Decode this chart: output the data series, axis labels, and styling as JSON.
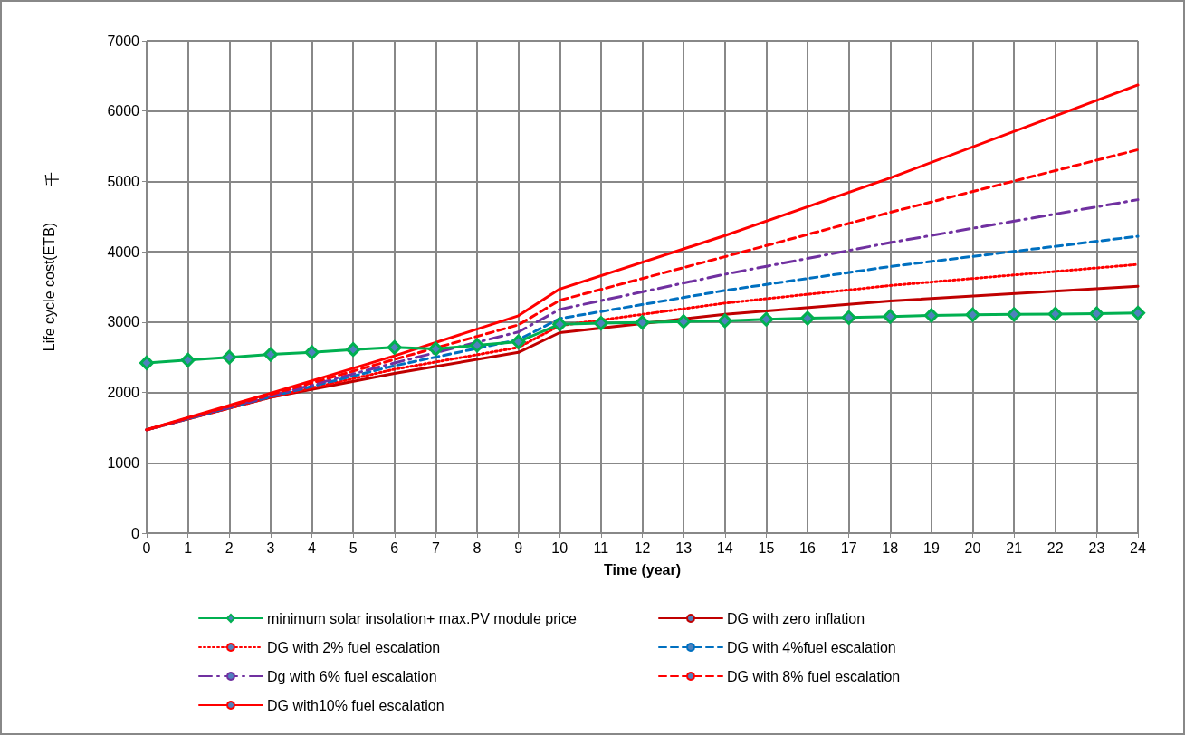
{
  "chart_data": {
    "type": "line",
    "xlabel": "Time (year)",
    "ylabel": "Life cycle cost(ETB)",
    "annotations": [
      "千"
    ],
    "xlim": [
      0,
      24
    ],
    "xticks": [
      0,
      1,
      2,
      3,
      4,
      5,
      6,
      7,
      8,
      9,
      10,
      11,
      12,
      13,
      14,
      15,
      16,
      17,
      18,
      19,
      20,
      21,
      22,
      23,
      24
    ],
    "ylim": [
      0,
      7000
    ],
    "yticks": [
      0,
      1000,
      2000,
      3000,
      4000,
      5000,
      6000,
      7000
    ],
    "grid": true,
    "legend": "bottom",
    "series": [
      {
        "name": "minimum solar insolation+ max.PV module price",
        "color": "#00b050",
        "marker": "diamond",
        "line_style": "solid",
        "x": [
          0,
          1,
          2,
          3,
          4,
          5,
          6,
          7,
          8,
          9,
          10,
          11,
          12,
          13,
          14,
          15,
          16,
          17,
          18,
          19,
          20,
          21,
          22,
          23,
          24
        ],
        "values": [
          2420,
          2460,
          2500,
          2540,
          2570,
          2610,
          2640,
          2620,
          2670,
          2720,
          2970,
          2985,
          2995,
          3008,
          3019,
          3040,
          3055,
          3065,
          3080,
          3095,
          3105,
          3110,
          3115,
          3120,
          3130
        ]
      },
      {
        "name": "DG with zero inflation",
        "color": "#c00000",
        "marker": "none",
        "line_style": "solid",
        "x": [
          0,
          3,
          6,
          9,
          10,
          14,
          18,
          24
        ],
        "values": [
          1470,
          1930,
          2270,
          2570,
          2850,
          3110,
          3300,
          3510
        ]
      },
      {
        "name": "DG with 2% fuel escalation",
        "color": "#ff0000",
        "marker": "none",
        "line_style": "dotted",
        "x": [
          0,
          3,
          6,
          9,
          10,
          14,
          18,
          24
        ],
        "values": [
          1470,
          1930,
          2330,
          2640,
          2950,
          3270,
          3520,
          3820
        ]
      },
      {
        "name": "DG with 4%fuel escalation",
        "color": "#0070c0",
        "marker": "none",
        "line_style": "dashed",
        "x": [
          0,
          3,
          6,
          9,
          10,
          14,
          18,
          24
        ],
        "values": [
          1470,
          1940,
          2380,
          2750,
          3050,
          3450,
          3790,
          4220
        ]
      },
      {
        "name": "Dg with 6% fuel escalation",
        "color": "#7030a0",
        "marker": "none",
        "line_style": "dashdot",
        "x": [
          0,
          3,
          6,
          9,
          10,
          14,
          18,
          24
        ],
        "values": [
          1470,
          1950,
          2420,
          2860,
          3180,
          3680,
          4130,
          4740
        ]
      },
      {
        "name": "DG with 8% fuel escalation",
        "color": "#ff0000",
        "marker": "none",
        "line_style": "dashed",
        "x": [
          0,
          3,
          6,
          9,
          10,
          14,
          18,
          24
        ],
        "values": [
          1470,
          1970,
          2470,
          2960,
          3310,
          3930,
          4560,
          5450
        ]
      },
      {
        "name": "DG with10% fuel escalation",
        "color": "#ff0000",
        "marker": "none",
        "line_style": "solid",
        "x": [
          0,
          3,
          6,
          9,
          10,
          14,
          18,
          24
        ],
        "values": [
          1470,
          1990,
          2520,
          3090,
          3470,
          4230,
          5050,
          6370
        ]
      }
    ]
  }
}
